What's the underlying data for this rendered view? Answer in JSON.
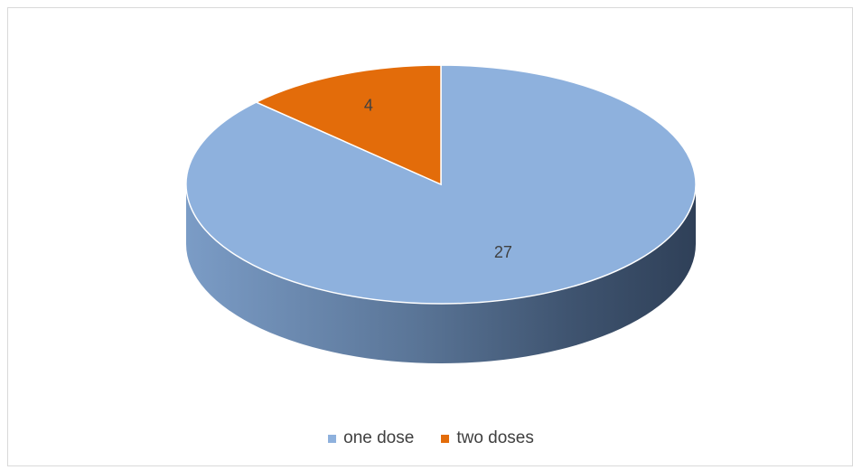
{
  "chart_data": {
    "type": "pie",
    "title": "",
    "legend_position": "bottom",
    "slices": [
      {
        "label": "one dose",
        "value": 27,
        "color": "#8EB1DD"
      },
      {
        "label": "two doses",
        "value": 4,
        "color": "#E36C0A"
      }
    ]
  }
}
